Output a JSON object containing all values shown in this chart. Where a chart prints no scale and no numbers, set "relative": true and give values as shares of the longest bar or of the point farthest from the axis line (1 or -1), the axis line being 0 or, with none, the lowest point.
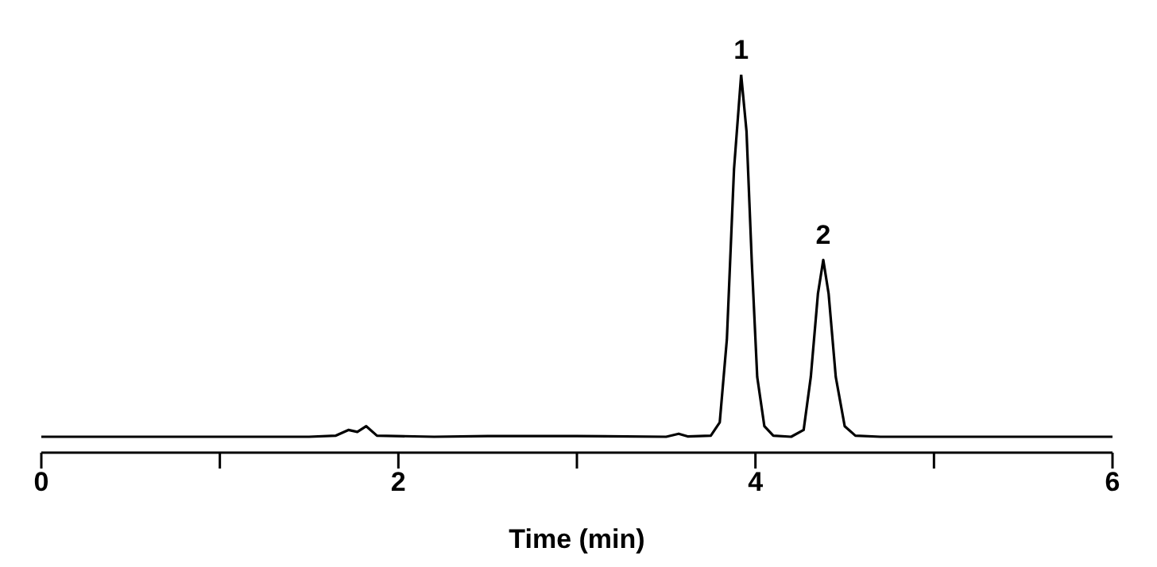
{
  "chart_data": {
    "type": "line",
    "relative": true,
    "xlabel": "Time (min)",
    "xlim": [
      0,
      6
    ],
    "xticks": [
      0,
      {
        "value": 1,
        "label": null
      },
      2,
      {
        "value": 3,
        "label": null
      },
      4,
      {
        "value": 5,
        "label": null
      },
      6
    ],
    "marker": "none",
    "grid": false,
    "annotations": [
      {
        "text": "1",
        "x": 3.92,
        "y": 1
      },
      {
        "text": "2",
        "x": 4.38,
        "y": 0.51
      }
    ],
    "series": [
      {
        "color": "#000000",
        "x": [
          0,
          1.5,
          1.65,
          1.72,
          1.77,
          1.82,
          1.88,
          2.2,
          2.5,
          3.0,
          3.5,
          3.57,
          3.62,
          3.75,
          3.8,
          3.84,
          3.88,
          3.92,
          3.95,
          3.98,
          4.01,
          4.05,
          4.1,
          4.2,
          4.27,
          4.31,
          4.35,
          4.38,
          4.41,
          4.45,
          4.5,
          4.56,
          4.7,
          6
        ],
        "values": [
          0.042,
          0.042,
          0.045,
          0.06,
          0.055,
          0.07,
          0.045,
          0.042,
          0.044,
          0.044,
          0.042,
          0.05,
          0.043,
          0.045,
          0.08,
          0.3,
          0.75,
          1,
          0.85,
          0.5,
          0.2,
          0.07,
          0.045,
          0.042,
          0.06,
          0.2,
          0.42,
          0.51,
          0.42,
          0.2,
          0.07,
          0.045,
          0.042,
          0.042
        ]
      }
    ]
  }
}
